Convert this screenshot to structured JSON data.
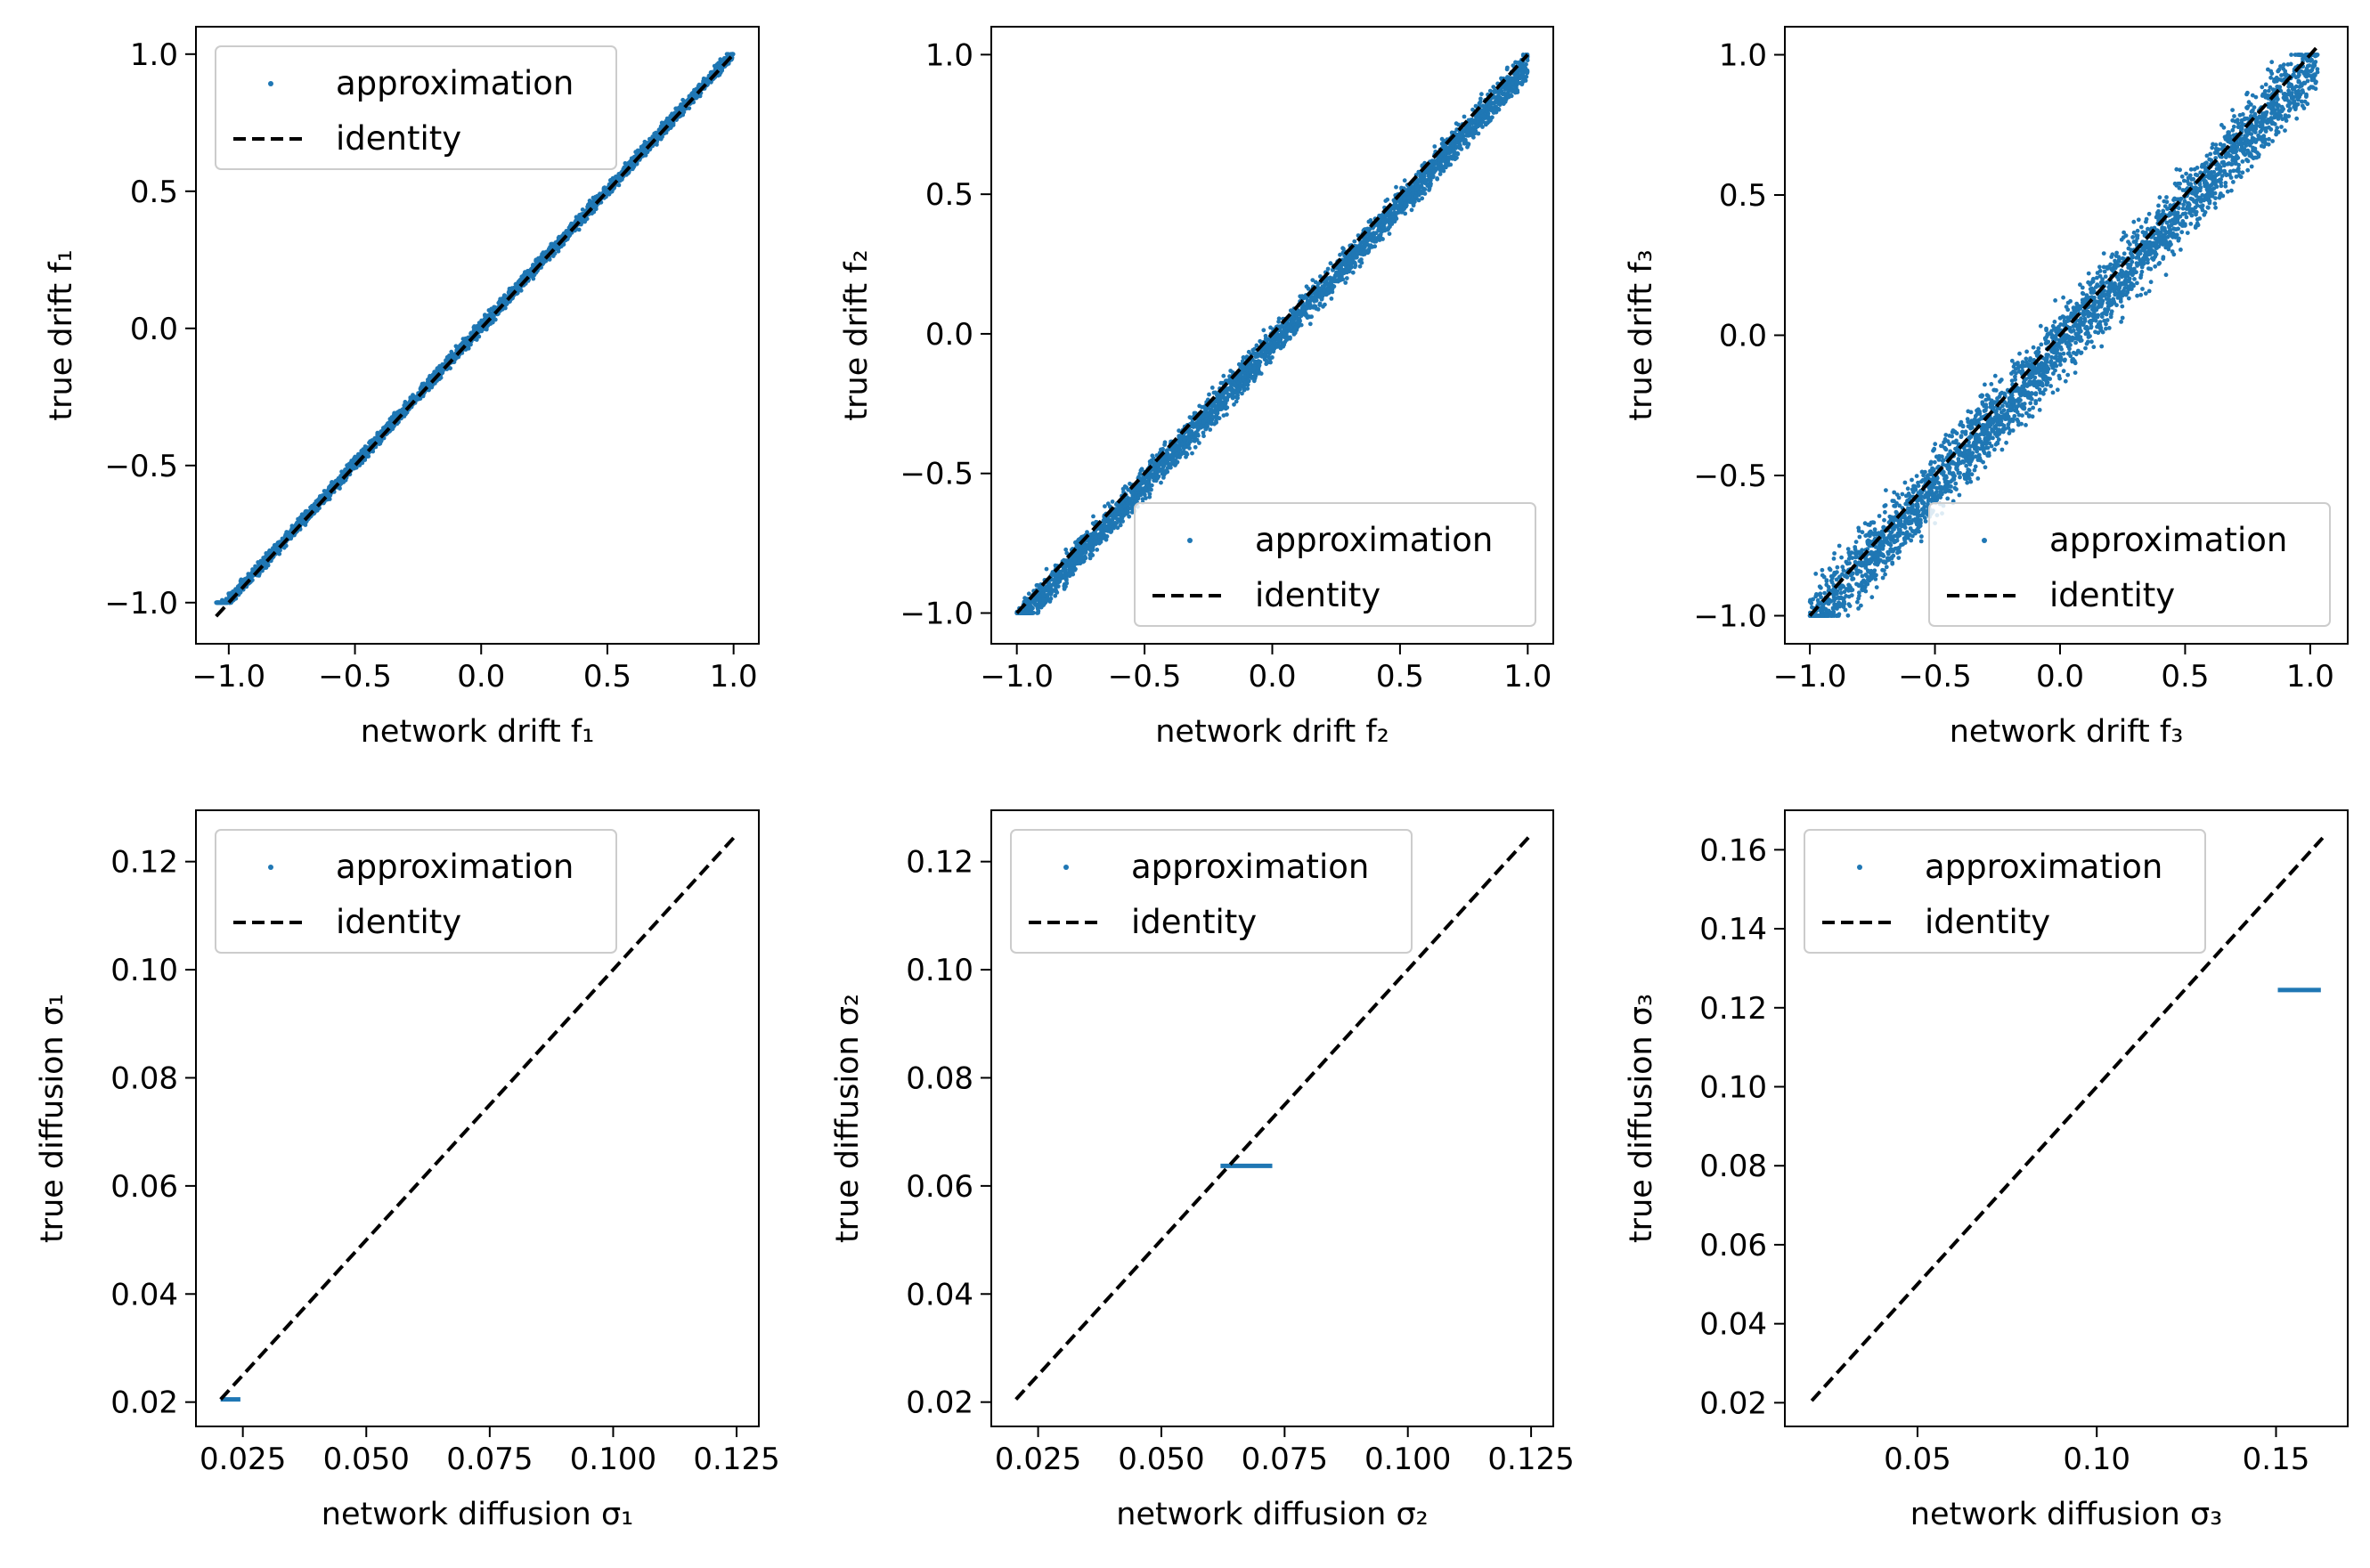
{
  "chart_data": [
    {
      "type": "scatter",
      "panel": "drift-1",
      "xlabel": "network drift f₁",
      "ylabel": "true drift f₁",
      "xlim": [
        -1.13,
        1.1
      ],
      "ylim": [
        -1.15,
        1.1
      ],
      "xticks": [
        -1.0,
        -0.5,
        0.0,
        0.5,
        1.0
      ],
      "xtick_labels": [
        "−1.0",
        "−0.5",
        "0.0",
        "0.5",
        "1.0"
      ],
      "yticks": [
        -1.0,
        -0.5,
        0.0,
        0.5,
        1.0
      ],
      "ytick_labels": [
        "−1.0",
        "−0.5",
        "0.0",
        "0.5",
        "1.0"
      ],
      "legend_position": "upper-left",
      "series": [
        {
          "name": "approximation",
          "kind": "scatter",
          "color": "#1f77b4",
          "band": {
            "x_range": [
              -1.05,
              1.0
            ],
            "spread": [
              -0.03,
              0.04
            ],
            "clip_y": [
              -1.0,
              1.0
            ]
          }
        },
        {
          "name": "identity",
          "kind": "line",
          "color": "#000000",
          "dash": "dashed",
          "x": [
            -1.05,
            1.0
          ],
          "y": [
            -1.05,
            1.0
          ]
        }
      ]
    },
    {
      "type": "scatter",
      "panel": "drift-2",
      "xlabel": "network drift f₂",
      "ylabel": "true drift f₂",
      "xlim": [
        -1.1,
        1.1
      ],
      "ylim": [
        -1.11,
        1.1
      ],
      "xticks": [
        -1.0,
        -0.5,
        0.0,
        0.5,
        1.0
      ],
      "xtick_labels": [
        "−1.0",
        "−0.5",
        "0.0",
        "0.5",
        "1.0"
      ],
      "yticks": [
        -1.0,
        -0.5,
        0.0,
        0.5,
        1.0
      ],
      "ytick_labels": [
        "−1.0",
        "−0.5",
        "0.0",
        "0.5",
        "1.0"
      ],
      "legend_position": "lower-right",
      "series": [
        {
          "name": "approximation",
          "kind": "scatter",
          "color": "#1f77b4",
          "band": {
            "x_range": [
              -1.0,
              1.0
            ],
            "spread": [
              -0.12,
              0.05
            ],
            "clip_y": [
              -1.0,
              1.0
            ]
          }
        },
        {
          "name": "identity",
          "kind": "line",
          "color": "#000000",
          "dash": "dashed",
          "x": [
            -1.0,
            1.0
          ],
          "y": [
            -1.0,
            1.0
          ]
        }
      ]
    },
    {
      "type": "scatter",
      "panel": "drift-3",
      "xlabel": "network drift f₃",
      "ylabel": "true drift f₃",
      "xlim": [
        -1.1,
        1.15
      ],
      "ylim": [
        -1.1,
        1.1
      ],
      "xticks": [
        -1.0,
        -0.5,
        0.0,
        0.5,
        1.0
      ],
      "xtick_labels": [
        "−1.0",
        "−0.5",
        "0.0",
        "0.5",
        "1.0"
      ],
      "yticks": [
        -1.0,
        -0.5,
        0.0,
        0.5,
        1.0
      ],
      "ytick_labels": [
        "−1.0",
        "−0.5",
        "0.0",
        "0.5",
        "1.0"
      ],
      "legend_position": "lower-right",
      "series": [
        {
          "name": "approximation",
          "kind": "scatter",
          "color": "#1f77b4",
          "band": {
            "x_range": [
              -1.0,
              1.03
            ],
            "spread": [
              -0.22,
              0.15
            ],
            "clip_y": [
              -1.0,
              1.0
            ]
          }
        },
        {
          "name": "identity",
          "kind": "line",
          "color": "#000000",
          "dash": "dashed",
          "x": [
            -1.0,
            1.03
          ],
          "y": [
            -1.0,
            1.03
          ]
        }
      ]
    },
    {
      "type": "scatter",
      "panel": "diffusion-1",
      "xlabel": "network diffusion σ₁",
      "ylabel": "true diffusion σ₁",
      "xlim": [
        0.0155,
        0.1295
      ],
      "ylim": [
        0.0155,
        0.1295
      ],
      "xticks": [
        0.025,
        0.05,
        0.075,
        0.1,
        0.125
      ],
      "xtick_labels": [
        "0.025",
        "0.050",
        "0.075",
        "0.100",
        "0.125"
      ],
      "yticks": [
        0.02,
        0.04,
        0.06,
        0.08,
        0.1,
        0.12
      ],
      "ytick_labels": [
        "0.02",
        "0.04",
        "0.06",
        "0.08",
        "0.10",
        "0.12"
      ],
      "legend_position": "upper-left",
      "series": [
        {
          "name": "approximation",
          "kind": "segment",
          "color": "#1f77b4",
          "x": [
            0.0205,
            0.0245
          ],
          "y": [
            0.0205,
            0.0205
          ]
        },
        {
          "name": "identity",
          "kind": "line",
          "color": "#000000",
          "dash": "dashed",
          "x": [
            0.0205,
            0.125
          ],
          "y": [
            0.0205,
            0.125
          ]
        }
      ]
    },
    {
      "type": "scatter",
      "panel": "diffusion-2",
      "xlabel": "network diffusion σ₂",
      "ylabel": "true diffusion σ₂",
      "xlim": [
        0.0155,
        0.1295
      ],
      "ylim": [
        0.0155,
        0.1295
      ],
      "xticks": [
        0.025,
        0.05,
        0.075,
        0.1,
        0.125
      ],
      "xtick_labels": [
        "0.025",
        "0.050",
        "0.075",
        "0.100",
        "0.125"
      ],
      "yticks": [
        0.02,
        0.04,
        0.06,
        0.08,
        0.1,
        0.12
      ],
      "ytick_labels": [
        "0.02",
        "0.04",
        "0.06",
        "0.08",
        "0.10",
        "0.12"
      ],
      "legend_position": "upper-left",
      "series": [
        {
          "name": "approximation",
          "kind": "segment",
          "color": "#1f77b4",
          "x": [
            0.062,
            0.0725
          ],
          "y": [
            0.0637,
            0.0637
          ]
        },
        {
          "name": "identity",
          "kind": "line",
          "color": "#000000",
          "dash": "dashed",
          "x": [
            0.0205,
            0.125
          ],
          "y": [
            0.0205,
            0.125
          ]
        }
      ]
    },
    {
      "type": "scatter",
      "panel": "diffusion-3",
      "xlabel": "network diffusion σ₃",
      "ylabel": "true diffusion σ₃",
      "xlim": [
        0.013,
        0.17
      ],
      "ylim": [
        0.014,
        0.17
      ],
      "xticks": [
        0.05,
        0.1,
        0.15
      ],
      "xtick_labels": [
        "0.05",
        "0.10",
        "0.15"
      ],
      "yticks": [
        0.02,
        0.04,
        0.06,
        0.08,
        0.1,
        0.12,
        0.14,
        0.16
      ],
      "ytick_labels": [
        "0.02",
        "0.04",
        "0.06",
        "0.08",
        "0.10",
        "0.12",
        "0.14",
        "0.16"
      ],
      "legend_position": "upper-left",
      "series": [
        {
          "name": "approximation",
          "kind": "segment",
          "color": "#1f77b4",
          "x": [
            0.1505,
            0.1625
          ],
          "y": [
            0.1245,
            0.1245
          ]
        },
        {
          "name": "identity",
          "kind": "line",
          "color": "#000000",
          "dash": "dashed",
          "x": [
            0.0205,
            0.163
          ],
          "y": [
            0.0205,
            0.163
          ]
        }
      ]
    }
  ]
}
